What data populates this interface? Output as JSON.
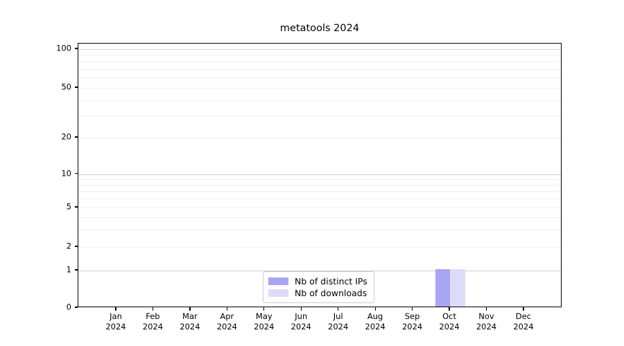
{
  "chart_data": {
    "type": "bar",
    "title": "metatools 2024",
    "x": {
      "categories": [
        "Jan",
        "Feb",
        "Mar",
        "Apr",
        "May",
        "Jun",
        "Jul",
        "Aug",
        "Sep",
        "Oct",
        "Nov",
        "Dec"
      ],
      "year_label": "2024"
    },
    "series": [
      {
        "name": "Nb of distinct IPs",
        "color": "#a6a6f2",
        "values": [
          0,
          0,
          0,
          0,
          0,
          0,
          0,
          0,
          0,
          1,
          0,
          0
        ]
      },
      {
        "name": "Nb of downloads",
        "color": "#dcdcf8",
        "values": [
          0,
          0,
          0,
          0,
          0,
          0,
          0,
          0,
          0,
          1,
          0,
          0
        ]
      }
    ],
    "y_axis": {
      "scale": "symlog",
      "range": [
        0,
        100
      ],
      "tick_labels": [
        0,
        1,
        2,
        5,
        10,
        20,
        50,
        100
      ],
      "major_gridlines": [
        1,
        10,
        100
      ],
      "minor_gridlines": [
        2,
        3,
        4,
        5,
        6,
        7,
        8,
        9,
        20,
        30,
        40,
        50,
        60,
        70,
        80,
        90
      ]
    },
    "legend": {
      "position": "lower center"
    },
    "grid": true,
    "colors": {
      "axis": "#000000",
      "major_grid": "#d2d2d2",
      "minor_grid": "#efefef",
      "legend_border": "#cccccc",
      "text": "#000000",
      "background": "#ffffff"
    }
  }
}
